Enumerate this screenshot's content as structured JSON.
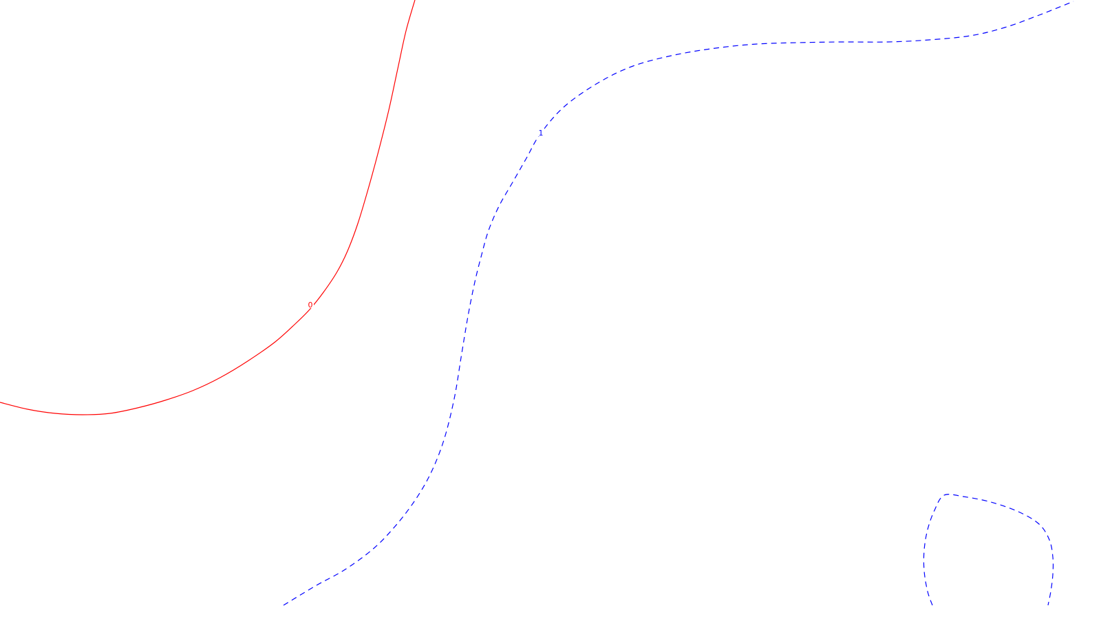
{
  "chart_data": {
    "type": "line",
    "title": "",
    "xlabel": "",
    "ylabel": "",
    "grid": false,
    "colors": {
      "background": "#ffffff"
    },
    "series": [
      {
        "contour_level": "0",
        "color": "#ff0000",
        "line_style": "solid",
        "segments": [
          [
            [
              0,
              585
            ],
            [
              40,
              595
            ],
            [
              80,
              601
            ],
            [
              120,
              603
            ],
            [
              160,
              601
            ],
            [
              200,
              593
            ],
            [
              240,
              582
            ],
            [
              280,
              568
            ],
            [
              320,
              549
            ],
            [
              360,
              525
            ],
            [
              400,
              497
            ],
            [
              430,
              470
            ],
            [
              450,
              450
            ],
            [
              470,
              425
            ],
            [
              490,
              395
            ],
            [
              505,
              365
            ],
            [
              520,
              325
            ],
            [
              535,
              275
            ],
            [
              550,
              220
            ],
            [
              565,
              160
            ],
            [
              578,
              100
            ],
            [
              590,
              45
            ],
            [
              603,
              0
            ]
          ]
        ],
        "label_at": [
          451,
          443
        ]
      },
      {
        "contour_level": "1",
        "color": "#0000ff",
        "line_style": "dashed",
        "segments": [
          [
            [
              412,
              880
            ],
            [
              460,
              851
            ],
            [
              500,
              829
            ],
            [
              540,
              800
            ],
            [
              570,
              770
            ],
            [
              600,
              732
            ],
            [
              625,
              690
            ],
            [
              645,
              640
            ],
            [
              660,
              580
            ],
            [
              670,
              520
            ],
            [
              680,
              460
            ],
            [
              690,
              410
            ],
            [
              700,
              370
            ],
            [
              710,
              335
            ],
            [
              725,
              300
            ],
            [
              745,
              265
            ],
            [
              765,
              230
            ],
            [
              785,
              195
            ],
            [
              820,
              155
            ],
            [
              870,
              120
            ],
            [
              920,
              96
            ],
            [
              980,
              80
            ],
            [
              1040,
              70
            ],
            [
              1100,
              64
            ],
            [
              1160,
              62
            ],
            [
              1220,
              61
            ],
            [
              1290,
              61
            ],
            [
              1350,
              58
            ],
            [
              1410,
              52
            ],
            [
              1460,
              40
            ],
            [
              1510,
              22
            ],
            [
              1560,
              2
            ]
          ],
          [
            [
              1355,
              880
            ],
            [
              1348,
              860
            ],
            [
              1343,
              830
            ],
            [
              1343,
              800
            ],
            [
              1348,
              770
            ],
            [
              1358,
              742
            ],
            [
              1372,
              720
            ],
            [
              1400,
              722
            ],
            [
              1440,
              730
            ],
            [
              1480,
              744
            ],
            [
              1510,
              762
            ],
            [
              1525,
              785
            ],
            [
              1530,
              810
            ],
            [
              1530,
              835
            ],
            [
              1527,
              860
            ],
            [
              1523,
              880
            ]
          ]
        ],
        "label_at": [
          786,
          193
        ]
      }
    ]
  }
}
